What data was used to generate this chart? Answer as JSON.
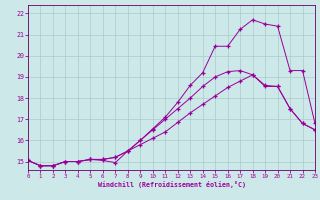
{
  "background_color": "#cde8e8",
  "grid_color": "#aacccc",
  "line_color": "#990099",
  "spine_color": "#660066",
  "xlim": [
    0,
    23
  ],
  "ylim": [
    14.6,
    22.4
  ],
  "xticks": [
    0,
    1,
    2,
    3,
    4,
    5,
    6,
    7,
    8,
    9,
    10,
    11,
    12,
    13,
    14,
    15,
    16,
    17,
    18,
    19,
    20,
    21,
    22,
    23
  ],
  "yticks": [
    15,
    16,
    17,
    18,
    19,
    20,
    21,
    22
  ],
  "xlabel": "Windchill (Refroidissement éolien,°C)",
  "line1_x": [
    0,
    1,
    2,
    3,
    4,
    5,
    6,
    7,
    8,
    9,
    10,
    11,
    12,
    13,
    14,
    15,
    16,
    17,
    18,
    19,
    20,
    21,
    22,
    23
  ],
  "line1_y": [
    15.05,
    14.8,
    14.8,
    15.0,
    15.0,
    15.1,
    15.05,
    14.95,
    15.5,
    16.0,
    16.5,
    17.0,
    17.5,
    18.0,
    18.55,
    19.0,
    19.25,
    19.3,
    19.1,
    18.55,
    18.55,
    17.5,
    16.8,
    16.5
  ],
  "line2_x": [
    0,
    1,
    2,
    3,
    4,
    5,
    6,
    7,
    8,
    9,
    10,
    11,
    12,
    13,
    14,
    15,
    16,
    17,
    18,
    19,
    20,
    21,
    22,
    23
  ],
  "line2_y": [
    15.05,
    14.8,
    14.8,
    15.0,
    15.0,
    15.1,
    15.1,
    15.2,
    15.5,
    15.8,
    16.1,
    16.4,
    16.85,
    17.3,
    17.7,
    18.1,
    18.5,
    18.8,
    19.1,
    18.6,
    18.55,
    17.5,
    16.8,
    16.5
  ],
  "line3_x": [
    0,
    1,
    2,
    3,
    4,
    5,
    6,
    7,
    8,
    9,
    10,
    11,
    12,
    13,
    14,
    15,
    16,
    17,
    18,
    19,
    20,
    21,
    22,
    23
  ],
  "line3_y": [
    15.05,
    14.8,
    14.8,
    15.0,
    15.0,
    15.1,
    15.1,
    15.2,
    15.5,
    16.0,
    16.55,
    17.1,
    17.8,
    18.6,
    19.2,
    20.45,
    20.45,
    21.25,
    21.7,
    21.5,
    21.4,
    19.3,
    19.3,
    16.8
  ]
}
